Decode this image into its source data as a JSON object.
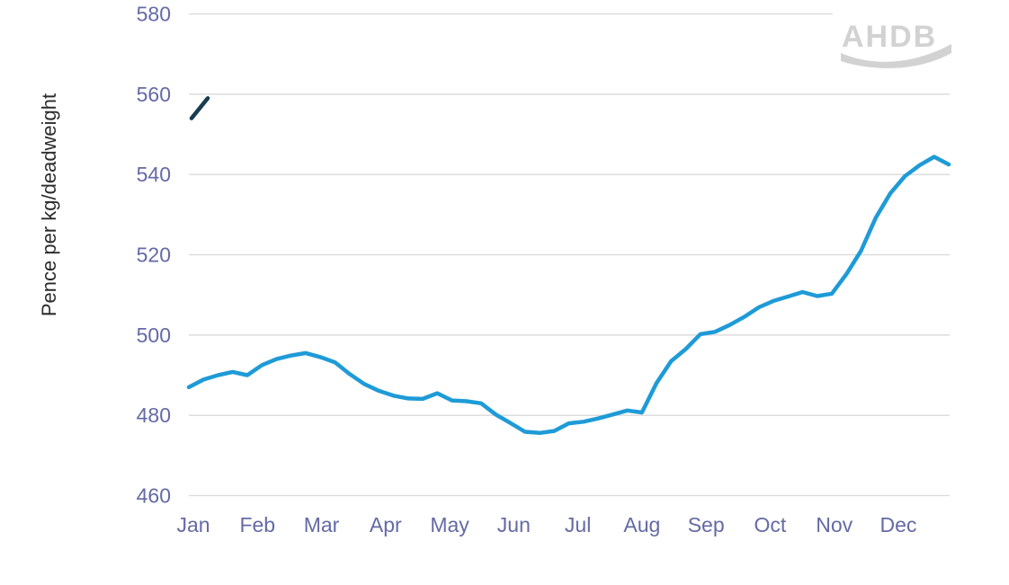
{
  "chart_data": {
    "type": "line",
    "title": "",
    "ylabel": "Pence per kg/deadweight",
    "xlabel": "",
    "watermark": "AHDB",
    "grid": "horizontal",
    "legend": "none",
    "x_axis": {
      "categories": [
        "Jan",
        "Feb",
        "Mar",
        "Apr",
        "May",
        "Jun",
        "Jul",
        "Aug",
        "Sep",
        "Oct",
        "Nov",
        "Dec"
      ]
    },
    "y_axis": {
      "min": 460,
      "max": 580,
      "ticks": [
        460,
        480,
        500,
        520,
        540,
        560,
        580
      ]
    },
    "colors": {
      "main_line": "#1e9bd7",
      "new_year_line": "#173d4f",
      "gridline": "#d9d9d9",
      "axis_labels": "#646aa5",
      "axis_title": "#2b2b2b",
      "logo": "#d2d2d2"
    },
    "series": [
      {
        "id": "full-year-weekly-price",
        "color": "#1e9bd7",
        "x_unit": "week",
        "values": [
          487,
          488.9,
          490,
          490.8,
          490,
          492.5,
          494,
          494.9,
          495.5,
          494.5,
          493.2,
          490.3,
          487.8,
          486.1,
          484.9,
          484.2,
          484.1,
          485.5,
          483.7,
          483.5,
          483,
          480.2,
          478.1,
          475.9,
          475.6,
          476.1,
          478,
          478.4,
          479.2,
          480.2,
          481.2,
          480.7,
          488,
          493.5,
          496.5,
          500.2,
          500.8,
          502.5,
          504.5,
          506.9,
          508.5,
          509.6,
          510.7,
          509.7,
          510.3,
          515.2,
          521,
          529.2,
          535.3,
          539.6,
          542.3,
          544.4,
          542.5
        ]
      },
      {
        "id": "new-year-first-weeks-price",
        "color": "#173d4f",
        "x_unit": "week",
        "values": [
          554,
          559
        ]
      }
    ]
  }
}
